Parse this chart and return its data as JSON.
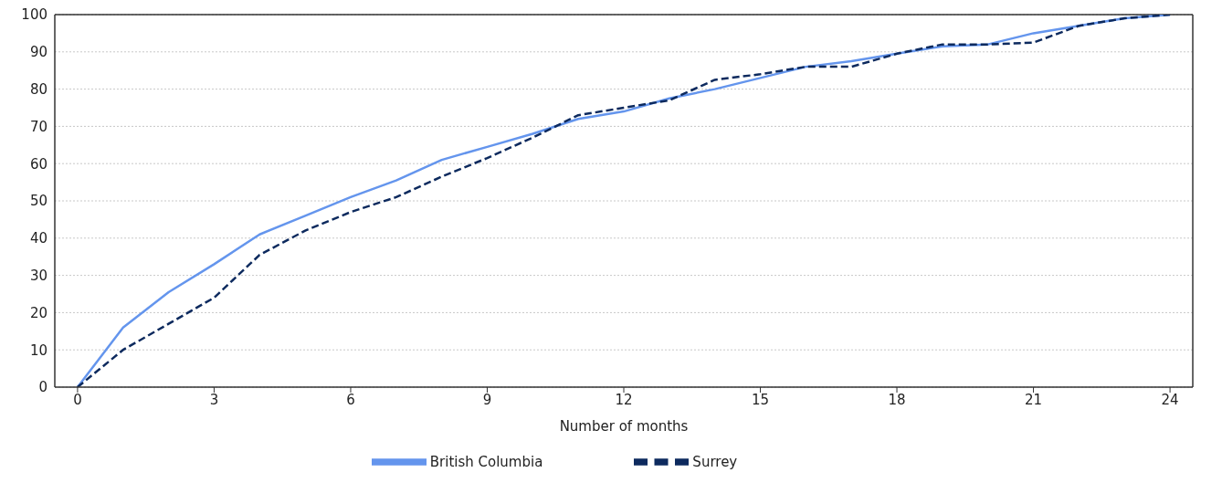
{
  "chart_data": {
    "type": "line",
    "xlabel": "Number of months",
    "x": [
      0,
      1,
      2,
      3,
      4,
      5,
      6,
      7,
      8,
      9,
      10,
      11,
      12,
      13,
      14,
      15,
      16,
      17,
      18,
      19,
      20,
      21,
      22,
      23,
      24
    ],
    "series": [
      {
        "name": "British Columbia",
        "color": "#6495ed",
        "line_style": "solid",
        "values": [
          0,
          16,
          25.5,
          33,
          41,
          46,
          51,
          55.5,
          61,
          64.5,
          68,
          72,
          74,
          77.5,
          80,
          83,
          86,
          87.5,
          89.5,
          91.5,
          92,
          95,
          97,
          99,
          100
        ]
      },
      {
        "name": "Surrey",
        "color": "#0d2a5e",
        "line_style": "dashed",
        "values": [
          0,
          10,
          17,
          24,
          35.5,
          42,
          47,
          51,
          56.5,
          61.5,
          67,
          73,
          75,
          77,
          82.5,
          84,
          86,
          86,
          89.5,
          92,
          92,
          92.5,
          97,
          99,
          100
        ]
      }
    ],
    "xlim": [
      -0.5,
      24.5
    ],
    "xticks": [
      0,
      3,
      6,
      9,
      12,
      15,
      18,
      21,
      24
    ],
    "ylim": [
      0,
      100
    ],
    "yticks": [
      0,
      10,
      20,
      30,
      40,
      50,
      60,
      70,
      80,
      90,
      100
    ],
    "grid": "y",
    "legend": "bottom",
    "marker": "none"
  }
}
